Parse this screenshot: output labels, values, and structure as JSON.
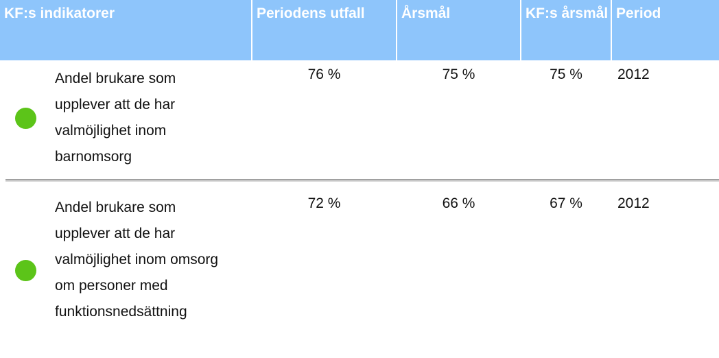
{
  "table": {
    "header": [
      "KF:s indikatorer",
      "Periodens utfall",
      "Årsmål",
      "KF:s årsmål",
      "Period"
    ],
    "rows": [
      [
        "Andel brukare som upplever att de har valmöjlighet inom barnomsorg",
        "76 %",
        "75 %",
        "75 %",
        "2012"
      ],
      [
        "Andel brukare som upplever att de har valmöjlighet inom omsorg om personer med funktionsnedsättning",
        "72 %",
        "66 %",
        "67 %",
        "2012"
      ]
    ]
  }
}
